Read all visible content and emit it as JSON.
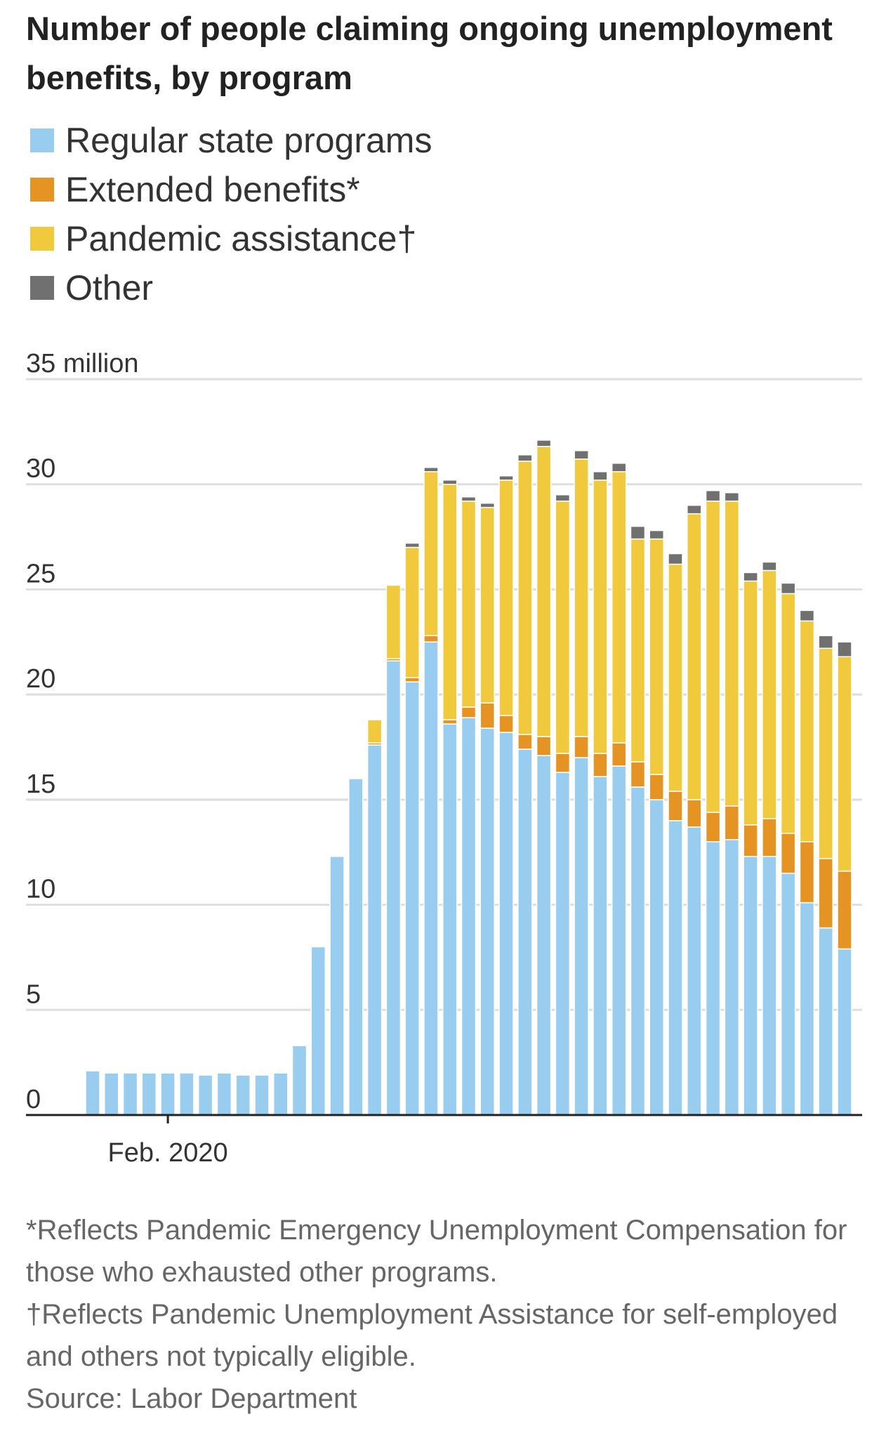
{
  "chart_data": {
    "type": "stacked_bar",
    "title": "Number of people claiming ongoing unemployment benefits, by program",
    "categories": [
      null,
      null,
      null,
      null,
      "Feb. 2020",
      null,
      null,
      null,
      null,
      null,
      null,
      null,
      null,
      null,
      null,
      null,
      null,
      null,
      null,
      null,
      null,
      null,
      null,
      null,
      null,
      null,
      null,
      null,
      null,
      null,
      null,
      null,
      null,
      null,
      null,
      null,
      null,
      null,
      null,
      null,
      null
    ],
    "series": [
      {
        "name": "Regular state programs",
        "color": "#98cdf0",
        "values": [
          2.1,
          2.0,
          2.0,
          2.0,
          2.0,
          2.0,
          1.9,
          2.0,
          1.9,
          1.9,
          2.0,
          3.3,
          8.0,
          12.3,
          16.0,
          17.6,
          21.6,
          20.6,
          22.5,
          18.6,
          18.9,
          18.4,
          18.2,
          17.4,
          17.1,
          16.3,
          17.0,
          16.1,
          16.6,
          15.6,
          15.0,
          14.0,
          13.7,
          13.0,
          13.1,
          12.3,
          12.3,
          11.5,
          10.1,
          8.9,
          7.9
        ]
      },
      {
        "name": "Extended benefits*",
        "color": "#e59424",
        "values": [
          0,
          0,
          0,
          0,
          0,
          0,
          0,
          0,
          0,
          0,
          0,
          0,
          0,
          0,
          0,
          0.1,
          0.1,
          0.2,
          0.3,
          0.2,
          0.5,
          1.2,
          0.8,
          0.7,
          0.9,
          0.9,
          1.0,
          1.1,
          1.1,
          1.2,
          1.2,
          1.4,
          1.3,
          1.4,
          1.6,
          1.5,
          1.8,
          1.9,
          2.9,
          3.3,
          3.7
        ]
      },
      {
        "name": "Pandemic assistance†",
        "color": "#f0c93c",
        "values": [
          0,
          0,
          0,
          0,
          0,
          0,
          0,
          0,
          0,
          0,
          0,
          0,
          0,
          0,
          0,
          1.1,
          3.5,
          6.2,
          7.8,
          11.2,
          9.8,
          9.3,
          11.2,
          13.0,
          13.8,
          12.0,
          13.2,
          13.0,
          12.9,
          10.6,
          11.2,
          10.8,
          13.6,
          14.8,
          14.5,
          11.6,
          11.8,
          11.4,
          10.5,
          10.0,
          10.2
        ]
      },
      {
        "name": "Other",
        "color": "#707070",
        "values": [
          0,
          0,
          0,
          0,
          0,
          0,
          0,
          0,
          0,
          0,
          0,
          0,
          0,
          0,
          0,
          0,
          0,
          0.2,
          0.2,
          0.2,
          0.2,
          0.2,
          0.2,
          0.3,
          0.3,
          0.3,
          0.4,
          0.4,
          0.4,
          0.6,
          0.4,
          0.5,
          0.4,
          0.5,
          0.4,
          0.4,
          0.4,
          0.5,
          0.5,
          0.6,
          0.7
        ]
      }
    ],
    "ylim": [
      0,
      35
    ],
    "yticks": [
      0,
      5,
      10,
      15,
      20,
      25,
      30,
      {
        "value": 35,
        "label": "35 million"
      }
    ],
    "grid": true,
    "notes": [
      "*Reflects Pandemic Emergency Unemployment Compensation for those who exhausted other programs.",
      "†Reflects Pandemic Unemployment Assistance for self-employed and others not typically eligible."
    ],
    "source": "Source: Labor Department"
  }
}
